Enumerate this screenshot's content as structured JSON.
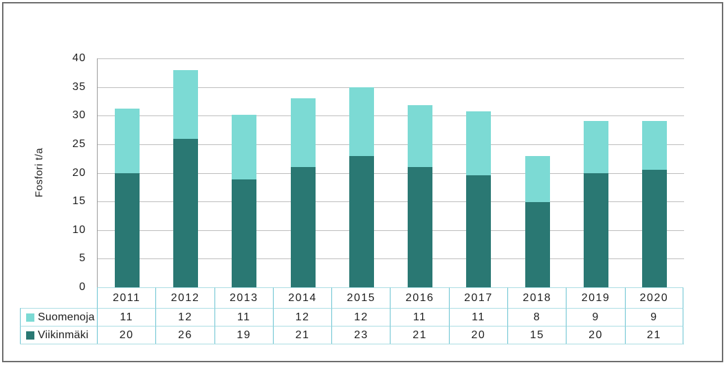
{
  "colors": {
    "suomenoja_light_teal": "#7cdad4",
    "viikinmaki_dark_teal": "#2a7873",
    "gridline": "#bdbdbd",
    "axis_line": "#9a9a9a",
    "frame_border": "#6d6d6d",
    "table_border_vertical": "#69c3d1",
    "table_border_horizontal": "#abdde3",
    "text": "#1d1d1d"
  },
  "chart_data": {
    "type": "bar",
    "stacked": true,
    "title": "",
    "xlabel": "",
    "ylabel": "Fosfori t/a",
    "ylim": [
      0,
      40
    ],
    "ytick_step": 5,
    "grid": true,
    "legend_position": "table-left",
    "categories": [
      "2011",
      "2012",
      "2013",
      "2014",
      "2015",
      "2016",
      "2017",
      "2018",
      "2019",
      "2020"
    ],
    "series": [
      {
        "name": "Suomenoja",
        "color": "#7cdad4",
        "values": [
          11,
          12,
          11,
          12,
          12,
          11,
          11,
          8,
          9,
          9
        ],
        "values_plotted": [
          11.3,
          12.0,
          11.3,
          12.0,
          12.1,
          10.8,
          11.2,
          8.1,
          9.2,
          8.6
        ]
      },
      {
        "name": "Viikinmäki",
        "color": "#2a7873",
        "values": [
          20,
          26,
          19,
          21,
          23,
          21,
          20,
          15,
          20,
          21
        ],
        "values_plotted": [
          19.9,
          26.0,
          18.9,
          21.0,
          22.9,
          21.0,
          19.6,
          14.9,
          19.9,
          20.5
        ]
      }
    ]
  }
}
